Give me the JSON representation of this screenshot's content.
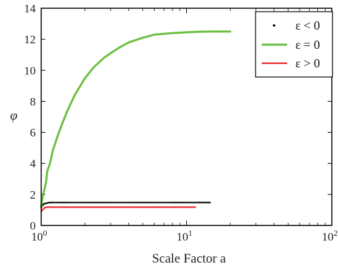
{
  "chart_data": {
    "type": "line",
    "xlabel": "Scale Factor a",
    "ylabel": "φ",
    "x_scale": "log",
    "xlim": [
      1,
      100
    ],
    "ylim": [
      0,
      14
    ],
    "grid": false,
    "legend_position": "top-right",
    "x_ticks": [
      {
        "value": 1,
        "base": "10",
        "exp": "0"
      },
      {
        "value": 10,
        "base": "10",
        "exp": "1"
      },
      {
        "value": 100,
        "base": "10",
        "exp": "2"
      }
    ],
    "y_ticks": [
      {
        "value": 0,
        "label": "0"
      },
      {
        "value": 2,
        "label": "2"
      },
      {
        "value": 4,
        "label": "4"
      },
      {
        "value": 6,
        "label": "6"
      },
      {
        "value": 8,
        "label": "8"
      },
      {
        "value": 10,
        "label": "10"
      },
      {
        "value": 12,
        "label": "12"
      },
      {
        "value": 14,
        "label": "14"
      }
    ],
    "series": [
      {
        "name": "ε < 0",
        "style": "dots",
        "color": "#000000",
        "x": [
          1.0,
          1.02,
          1.05,
          1.1,
          1.15,
          1.2,
          1.3,
          1.5,
          2,
          3,
          4,
          6,
          8,
          10,
          12,
          14.5
        ],
        "y": [
          1.15,
          1.3,
          1.4,
          1.45,
          1.48,
          1.48,
          1.48,
          1.48,
          1.48,
          1.48,
          1.48,
          1.48,
          1.48,
          1.48,
          1.48,
          1.48
        ]
      },
      {
        "name": "ε = 0",
        "style": "line",
        "color": "#6abf40",
        "x": [
          1.0,
          1.02,
          1.05,
          1.08,
          1.1,
          1.15,
          1.2,
          1.3,
          1.4,
          1.5,
          1.7,
          2.0,
          2.3,
          2.7,
          3.0,
          3.5,
          4.0,
          5.0,
          6.0,
          8.0,
          10.0,
          12.0,
          15.0,
          20.0
        ],
        "y": [
          1.2,
          1.8,
          2.3,
          2.8,
          3.5,
          4.0,
          4.8,
          5.8,
          6.6,
          7.3,
          8.4,
          9.5,
          10.2,
          10.8,
          11.1,
          11.5,
          11.8,
          12.1,
          12.3,
          12.4,
          12.45,
          12.48,
          12.5,
          12.5
        ]
      },
      {
        "name": "ε > 0",
        "style": "line",
        "color": "#e8292f",
        "x": [
          1.0,
          1.02,
          1.04,
          1.06,
          1.1,
          1.5,
          2,
          4,
          8,
          11.5
        ],
        "y": [
          0.9,
          1.0,
          1.08,
          1.15,
          1.18,
          1.18,
          1.18,
          1.18,
          1.18,
          1.18
        ]
      }
    ]
  }
}
